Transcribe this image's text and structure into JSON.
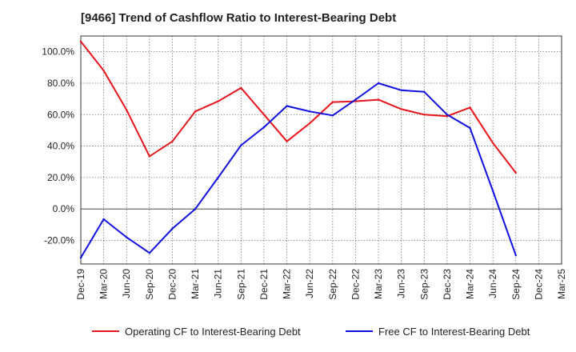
{
  "chart_data": {
    "type": "line",
    "title": "[9466]  Trend of Cashflow Ratio to Interest-Bearing Debt",
    "xlabel": "",
    "ylabel": "",
    "categories": [
      "Dec-19",
      "Mar-20",
      "Jun-20",
      "Sep-20",
      "Dec-20",
      "Mar-21",
      "Jun-21",
      "Sep-21",
      "Dec-21",
      "Mar-22",
      "Jun-22",
      "Sep-22",
      "Dec-22",
      "Mar-23",
      "Jun-23",
      "Sep-23",
      "Dec-23",
      "Mar-24",
      "Jun-24",
      "Sep-24",
      "Dec-24",
      "Mar-25"
    ],
    "ylim": [
      -35,
      110
    ],
    "yticks": [
      100,
      80,
      60,
      40,
      20,
      0,
      -20
    ],
    "ytick_labels": [
      "100.0%",
      "80.0%",
      "60.0%",
      "40.0%",
      "20.0%",
      "0.0%",
      "-20.0%"
    ],
    "grid": true,
    "legend_position": "bottom",
    "series": [
      {
        "name": "Operating CF to Interest-Bearing Debt",
        "color": "#e8141b",
        "values": [
          106.5,
          88,
          63,
          33.5,
          43,
          62,
          68.5,
          77,
          60,
          43,
          54.5,
          68,
          68.5,
          69.5,
          63.5,
          60,
          59,
          64.5,
          42,
          23,
          null,
          null
        ]
      },
      {
        "name": "Free CF to Interest-Bearing Debt",
        "color": "#1010e0",
        "values": [
          -31,
          -6.5,
          -18,
          -28,
          -12.5,
          0,
          20,
          40.5,
          52,
          65.5,
          62,
          59.5,
          69.5,
          80,
          75.5,
          74.5,
          60,
          51.5,
          11.5,
          -29.5,
          null,
          null
        ]
      }
    ]
  }
}
